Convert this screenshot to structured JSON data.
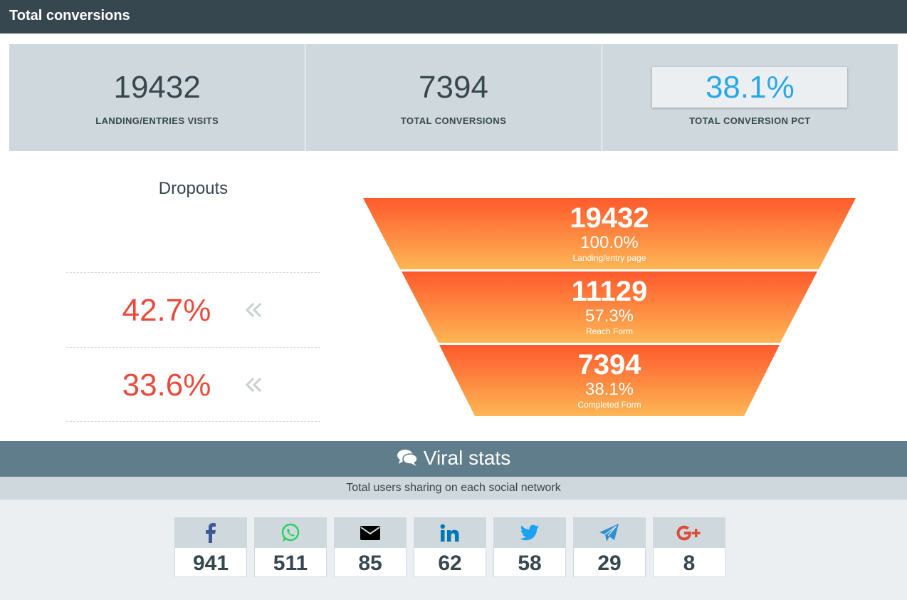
{
  "header": {
    "title": "Total conversions"
  },
  "kpis": [
    {
      "value": "19432",
      "label": "LANDING/ENTRIES VISITS"
    },
    {
      "value": "7394",
      "label": "TOTAL CONVERSIONS"
    },
    {
      "value": "38.1%",
      "label": "TOTAL CONVERSION PCT"
    }
  ],
  "dropouts": {
    "title": "Dropouts",
    "items": [
      "42.7%",
      "33.6%"
    ],
    "icon": "double-chevron-left-icon"
  },
  "funnel": {
    "colors": {
      "top": "#ff5a2c",
      "bottom": "#fdb655"
    },
    "stages": [
      {
        "value": "19432",
        "pct": "100.0%",
        "label": "Landing/entry page"
      },
      {
        "value": "11129",
        "pct": "57.3%",
        "label": "Reach Form"
      },
      {
        "value": "7394",
        "pct": "38.1%",
        "label": "Completed Form"
      }
    ]
  },
  "viral": {
    "title": "Viral stats",
    "icon": "comments-icon",
    "subtitle": "Total users sharing on each social network",
    "networks": [
      {
        "icon": "facebook-icon",
        "count": "941",
        "color": "#3b5998"
      },
      {
        "icon": "whatsapp-icon",
        "count": "511",
        "color": "#25d366"
      },
      {
        "icon": "email-icon",
        "count": "85",
        "color": "#000000"
      },
      {
        "icon": "linkedin-icon",
        "count": "62",
        "color": "#0077b5"
      },
      {
        "icon": "twitter-icon",
        "count": "58",
        "color": "#1da1f2"
      },
      {
        "icon": "telegram-icon",
        "count": "29",
        "color": "#2c8fd1"
      },
      {
        "icon": "google-plus-icon",
        "count": "8",
        "color": "#dd4b39"
      }
    ]
  }
}
